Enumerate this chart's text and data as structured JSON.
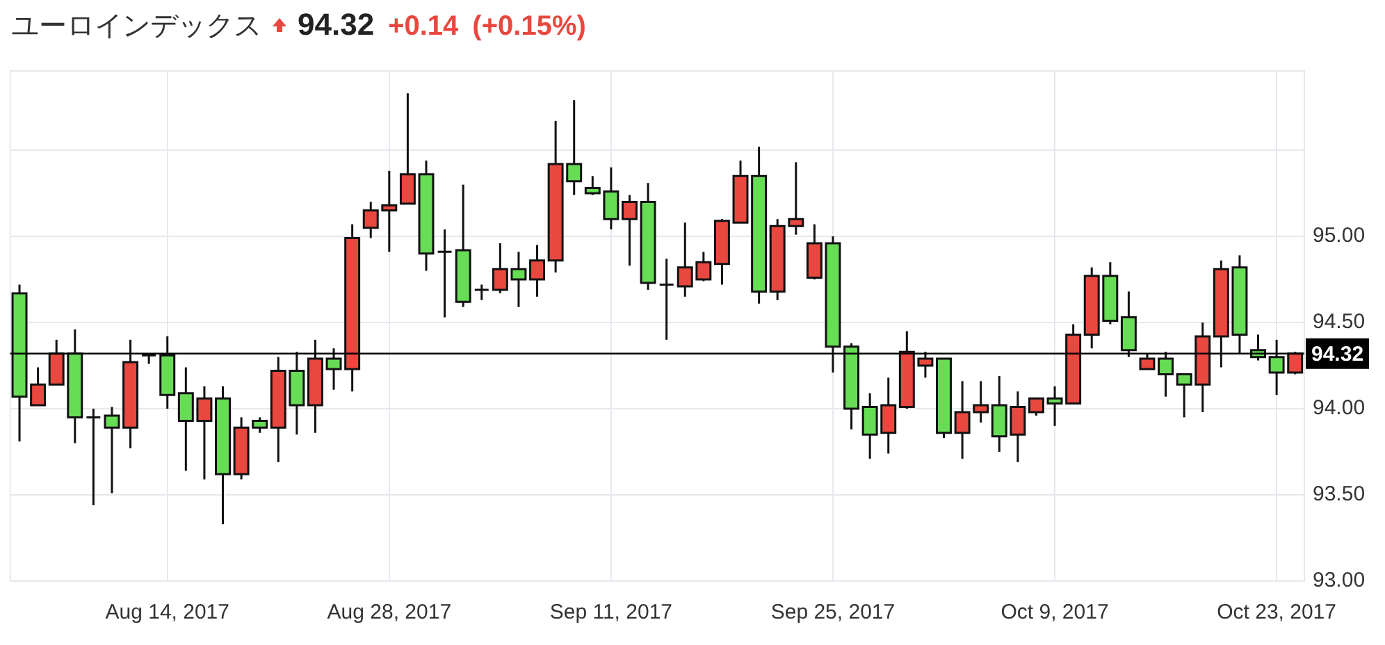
{
  "chart_data": {
    "type": "candlestick",
    "title": "ユーロインデックス",
    "annotations": [
      "94.32",
      "+0.14",
      "(+0.15%)"
    ],
    "categories": [
      null,
      null,
      null,
      null,
      null,
      null,
      null,
      null,
      "Aug 14, 2017",
      null,
      null,
      null,
      null,
      null,
      null,
      null,
      null,
      null,
      null,
      null,
      "Aug 28, 2017",
      null,
      null,
      null,
      null,
      null,
      null,
      null,
      null,
      null,
      null,
      null,
      "Sep 11, 2017",
      null,
      null,
      null,
      null,
      null,
      null,
      null,
      null,
      null,
      null,
      null,
      "Sep 25, 2017",
      null,
      null,
      null,
      null,
      null,
      null,
      null,
      null,
      null,
      null,
      null,
      "Oct 9, 2017",
      null,
      null,
      null,
      null,
      null,
      null,
      null,
      null,
      null,
      null,
      null,
      "Oct 23, 2017",
      null
    ],
    "ohlc": [
      [
        94.67,
        94.72,
        93.81,
        94.07
      ],
      [
        94.02,
        94.24,
        94.02,
        94.14
      ],
      [
        94.14,
        94.4,
        94.14,
        94.32
      ],
      [
        94.32,
        94.46,
        93.8,
        93.95
      ],
      [
        93.95,
        94.0,
        93.44,
        93.95
      ],
      [
        93.96,
        94.01,
        93.51,
        93.89
      ],
      [
        93.89,
        94.4,
        93.77,
        94.27
      ],
      [
        94.31,
        94.32,
        94.26,
        94.31
      ],
      [
        94.31,
        94.42,
        94.0,
        94.08
      ],
      [
        94.09,
        94.24,
        93.64,
        93.93
      ],
      [
        93.93,
        94.13,
        93.59,
        94.06
      ],
      [
        94.06,
        94.13,
        93.33,
        93.62
      ],
      [
        93.62,
        93.95,
        93.59,
        93.89
      ],
      [
        93.93,
        93.95,
        93.86,
        93.89
      ],
      [
        93.89,
        94.3,
        93.69,
        94.22
      ],
      [
        94.22,
        94.33,
        93.85,
        94.02
      ],
      [
        94.02,
        94.4,
        93.86,
        94.29
      ],
      [
        94.29,
        94.35,
        94.11,
        94.23
      ],
      [
        94.23,
        95.07,
        94.1,
        94.99
      ],
      [
        95.05,
        95.2,
        94.99,
        95.15
      ],
      [
        95.15,
        95.38,
        94.91,
        95.18
      ],
      [
        95.19,
        95.83,
        95.19,
        95.36
      ],
      [
        95.36,
        95.44,
        94.8,
        94.9
      ],
      [
        94.91,
        95.04,
        94.53,
        94.91
      ],
      [
        94.92,
        95.3,
        94.59,
        94.62
      ],
      [
        94.69,
        94.72,
        94.63,
        94.69
      ],
      [
        94.69,
        94.96,
        94.67,
        94.81
      ],
      [
        94.81,
        94.91,
        94.59,
        94.75
      ],
      [
        94.75,
        94.95,
        94.65,
        94.86
      ],
      [
        94.86,
        95.67,
        94.79,
        95.42
      ],
      [
        95.42,
        95.79,
        95.24,
        95.32
      ],
      [
        95.28,
        95.35,
        95.24,
        95.25
      ],
      [
        95.26,
        95.4,
        95.04,
        95.1
      ],
      [
        95.1,
        95.24,
        94.83,
        95.2
      ],
      [
        95.2,
        95.31,
        94.69,
        94.73
      ],
      [
        94.72,
        94.87,
        94.4,
        94.72
      ],
      [
        94.71,
        95.08,
        94.65,
        94.82
      ],
      [
        94.75,
        94.91,
        94.74,
        94.85
      ],
      [
        94.84,
        95.1,
        94.72,
        95.09
      ],
      [
        95.08,
        95.44,
        95.08,
        95.35
      ],
      [
        95.35,
        95.52,
        94.61,
        94.68
      ],
      [
        94.68,
        95.1,
        94.63,
        95.06
      ],
      [
        95.06,
        95.43,
        95.01,
        95.1
      ],
      [
        94.76,
        95.07,
        94.75,
        94.96
      ],
      [
        94.96,
        95.0,
        94.21,
        94.36
      ],
      [
        94.36,
        94.38,
        93.88,
        94.0
      ],
      [
        94.01,
        94.09,
        93.71,
        93.85
      ],
      [
        93.86,
        94.18,
        93.74,
        94.02
      ],
      [
        94.01,
        94.45,
        94.0,
        94.33
      ],
      [
        94.25,
        94.33,
        94.18,
        94.29
      ],
      [
        94.29,
        94.29,
        93.83,
        93.86
      ],
      [
        93.86,
        94.16,
        93.71,
        93.98
      ],
      [
        93.98,
        94.16,
        93.92,
        94.02
      ],
      [
        94.02,
        94.19,
        93.75,
        93.84
      ],
      [
        93.85,
        94.1,
        93.69,
        94.01
      ],
      [
        93.98,
        94.06,
        93.96,
        94.06
      ],
      [
        94.06,
        94.13,
        93.9,
        94.03
      ],
      [
        94.03,
        94.49,
        94.03,
        94.43
      ],
      [
        94.43,
        94.82,
        94.35,
        94.77
      ],
      [
        94.77,
        94.85,
        94.49,
        94.51
      ],
      [
        94.53,
        94.68,
        94.3,
        94.34
      ],
      [
        94.23,
        94.32,
        94.23,
        94.29
      ],
      [
        94.29,
        94.33,
        94.07,
        94.2
      ],
      [
        94.2,
        94.2,
        93.95,
        94.14
      ],
      [
        94.14,
        94.5,
        93.98,
        94.42
      ],
      [
        94.42,
        94.86,
        94.24,
        94.81
      ],
      [
        94.82,
        94.89,
        94.32,
        94.43
      ],
      [
        94.34,
        94.43,
        94.28,
        94.3
      ],
      [
        94.3,
        94.4,
        94.08,
        94.21
      ],
      [
        94.21,
        94.33,
        94.2,
        94.32
      ]
    ],
    "colors": [
      "#66dd55",
      "#e8483f",
      "#e8483f",
      "#66dd55",
      "#111111",
      "#66dd55",
      "#e8483f",
      "#111111",
      "#66dd55",
      "#66dd55",
      "#e8483f",
      "#66dd55",
      "#e8483f",
      "#66dd55",
      "#e8483f",
      "#66dd55",
      "#e8483f",
      "#66dd55",
      "#e8483f",
      "#e8483f",
      "#e8483f",
      "#e8483f",
      "#66dd55",
      "#111111",
      "#66dd55",
      "#111111",
      "#e8483f",
      "#66dd55",
      "#e8483f",
      "#e8483f",
      "#66dd55",
      "#66dd55",
      "#66dd55",
      "#e8483f",
      "#66dd55",
      "#111111",
      "#e8483f",
      "#e8483f",
      "#e8483f",
      "#e8483f",
      "#66dd55",
      "#e8483f",
      "#e8483f",
      "#e8483f",
      "#66dd55",
      "#66dd55",
      "#66dd55",
      "#e8483f",
      "#e8483f",
      "#e8483f",
      "#66dd55",
      "#e8483f",
      "#e8483f",
      "#66dd55",
      "#e8483f",
      "#e8483f",
      "#66dd55",
      "#e8483f",
      "#e8483f",
      "#66dd55",
      "#66dd55",
      "#e8483f",
      "#66dd55",
      "#66dd55",
      "#e8483f",
      "#e8483f",
      "#66dd55",
      "#66dd55",
      "#66dd55",
      "#e8483f"
    ],
    "ylim": [
      93,
      95.96
    ],
    "yticks": [
      {
        "value": 93,
        "label": "93.00"
      },
      {
        "value": 93.5,
        "label": "93.50"
      },
      {
        "value": 94,
        "label": "94.00"
      },
      {
        "value": 94.5,
        "label": "94.50"
      },
      {
        "value": 95,
        "label": "95.00"
      },
      {
        "value": 95.5,
        "label": null
      }
    ],
    "ref_lines": [
      {
        "axis": "y",
        "value": 94.32,
        "label": "94.32",
        "color": "#000000"
      }
    ],
    "grid": true,
    "legend": false
  }
}
